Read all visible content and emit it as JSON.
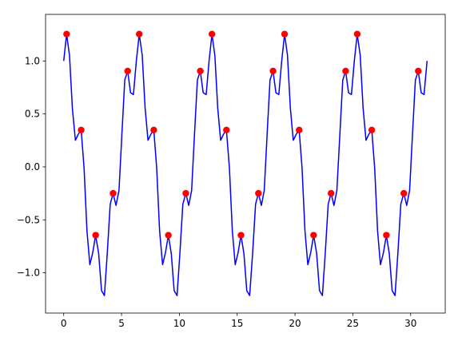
{
  "chart_data": {
    "type": "line",
    "series": [
      {
        "color": "#0000ff",
        "kind": "line",
        "x": [
          0.0,
          0.25,
          0.5,
          0.75,
          1.01,
          1.26,
          1.51,
          1.76,
          2.01,
          2.26,
          2.51,
          2.76,
          3.02,
          3.27,
          3.52,
          3.77,
          4.02,
          4.27,
          4.52,
          4.78,
          5.03,
          5.28,
          5.53,
          5.78,
          6.03,
          6.28,
          6.53,
          6.79,
          7.04,
          7.29,
          7.54,
          7.79,
          8.04,
          8.29,
          8.55,
          8.8,
          9.05,
          9.3,
          9.55,
          9.8,
          10.05,
          10.3,
          10.56,
          10.81,
          11.06,
          11.31,
          11.56,
          11.81,
          12.06,
          12.32,
          12.57,
          12.82,
          13.07,
          13.32,
          13.57,
          13.82,
          14.07,
          14.33,
          14.58,
          14.83,
          15.08,
          15.33,
          15.58,
          15.83,
          16.08,
          16.34,
          16.59,
          16.84,
          17.09,
          17.34,
          17.59,
          17.84,
          18.1,
          18.35,
          18.6,
          18.85,
          19.1,
          19.35,
          19.6,
          19.85,
          20.11,
          20.36,
          20.61,
          20.86,
          21.11,
          21.36,
          21.61,
          21.87,
          22.12,
          22.37,
          22.62,
          22.87,
          23.12,
          23.37,
          23.62,
          23.88,
          24.13,
          24.38,
          24.63,
          24.88,
          25.13,
          25.38,
          25.64,
          25.89,
          26.14,
          26.39,
          26.64,
          26.89,
          27.14,
          27.39,
          27.65,
          27.9,
          28.15,
          28.4,
          28.65,
          28.9,
          29.15,
          29.41,
          29.66,
          29.91,
          30.16,
          30.41,
          30.66,
          30.91,
          31.16,
          31.42
        ],
        "values": [
          1.0,
          1.254,
          1.053,
          0.553,
          0.251,
          0.309,
          0.348,
          -0.011,
          -0.602,
          -0.923,
          -0.809,
          -0.645,
          -0.816,
          -1.168,
          -1.215,
          -0.809,
          -0.352,
          -0.25,
          -0.364,
          -0.223,
          0.309,
          0.821,
          0.905,
          0.7,
          0.683,
          1.0,
          1.254,
          1.053,
          0.553,
          0.251,
          0.309,
          0.348,
          -0.011,
          -0.602,
          -0.923,
          -0.809,
          -0.645,
          -0.816,
          -1.168,
          -1.215,
          -0.809,
          -0.352,
          -0.25,
          -0.364,
          -0.223,
          0.309,
          0.821,
          0.905,
          0.7,
          0.683,
          1.0,
          1.254,
          1.053,
          0.553,
          0.251,
          0.309,
          0.348,
          -0.011,
          -0.602,
          -0.923,
          -0.809,
          -0.645,
          -0.816,
          -1.168,
          -1.215,
          -0.809,
          -0.352,
          -0.25,
          -0.364,
          -0.223,
          0.309,
          0.821,
          0.905,
          0.7,
          0.683,
          1.0,
          1.254,
          1.053,
          0.553,
          0.251,
          0.309,
          0.348,
          -0.011,
          -0.602,
          -0.923,
          -0.809,
          -0.645,
          -0.816,
          -1.168,
          -1.215,
          -0.809,
          -0.352,
          -0.25,
          -0.364,
          -0.223,
          0.309,
          0.821,
          0.905,
          0.7,
          0.683,
          1.0,
          1.254,
          1.053,
          0.553,
          0.251,
          0.309,
          0.348,
          -0.011,
          -0.602,
          -0.923,
          -0.809,
          -0.645,
          -0.816,
          -1.168,
          -1.215,
          -0.809,
          -0.352,
          -0.25,
          -0.364,
          -0.223,
          0.309,
          0.821,
          0.905,
          0.7,
          0.683,
          1.0
        ]
      },
      {
        "color": "#ff0000",
        "kind": "scatter",
        "x": [
          0.25,
          1.51,
          2.76,
          4.27,
          5.53,
          6.53,
          7.79,
          9.05,
          10.56,
          11.81,
          12.82,
          14.07,
          15.33,
          16.84,
          18.1,
          19.1,
          20.36,
          21.61,
          23.12,
          24.38,
          25.38,
          26.64,
          27.9,
          29.41,
          30.66
        ],
        "values": [
          1.254,
          0.348,
          -0.645,
          -0.25,
          0.905,
          1.254,
          0.348,
          -0.645,
          -0.25,
          0.905,
          1.254,
          0.348,
          -0.645,
          -0.25,
          0.905,
          1.254,
          0.348,
          -0.645,
          -0.25,
          0.905,
          1.254,
          0.348,
          -0.645,
          -0.25,
          0.905
        ]
      }
    ],
    "xlim": [
      -1.57,
      32.99
    ],
    "xticks": [
      0,
      5,
      10,
      15,
      20,
      25,
      30
    ],
    "ylim": [
      -1.38,
      1.44
    ],
    "yticks": [
      {
        "value": -1.0,
        "label": "−1.0"
      },
      {
        "value": -0.5,
        "label": "−0.5"
      },
      {
        "value": 0.0,
        "label": "0.0"
      },
      {
        "value": 0.5,
        "label": "0.5"
      },
      {
        "value": 1.0,
        "label": "1.0"
      }
    ],
    "grid": false
  }
}
